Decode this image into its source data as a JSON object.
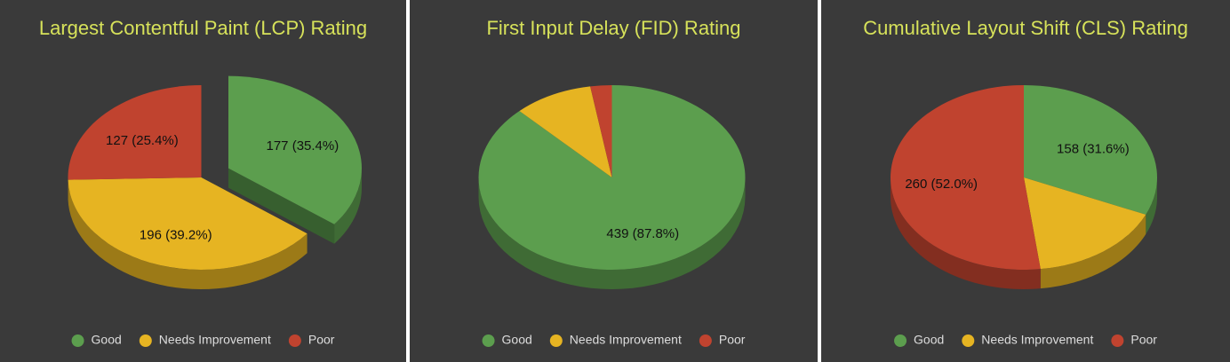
{
  "chart_data": [
    {
      "type": "pie3d",
      "title": "Largest Contentful Paint (LCP) Rating",
      "categories": [
        "Good",
        "Needs Improvement",
        "Poor"
      ],
      "values": [
        177,
        196,
        127
      ],
      "value_labels": [
        "177 (35.4%)",
        "196 (39.2%)",
        "127 (25.4%)"
      ],
      "colors": [
        "#5c9e4e",
        "#e6b422",
        "#c0432f"
      ],
      "exploded": [
        true,
        false,
        false
      ]
    },
    {
      "type": "pie3d",
      "title": "First Input Delay (FID) Rating",
      "categories": [
        "Good",
        "Needs Improvement",
        "Poor"
      ],
      "values": [
        439,
        48,
        13
      ],
      "value_labels": [
        "439 (87.8%)",
        null,
        null
      ],
      "colors": [
        "#5c9e4e",
        "#e6b422",
        "#c0432f"
      ],
      "exploded": [
        false,
        false,
        false
      ]
    },
    {
      "type": "pie3d",
      "title": "Cumulative Layout Shift (CLS) Rating",
      "categories": [
        "Good",
        "Needs Improvement",
        "Poor"
      ],
      "values": [
        158,
        82,
        260
      ],
      "value_labels": [
        "158 (31.6%)",
        null,
        "260 (52.0%)"
      ],
      "colors": [
        "#5c9e4e",
        "#e6b422",
        "#c0432f"
      ],
      "exploded": [
        false,
        false,
        false
      ]
    }
  ]
}
